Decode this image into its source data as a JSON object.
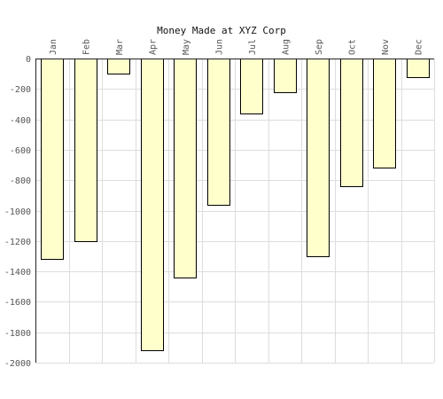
{
  "chart_data": {
    "type": "bar",
    "title": "Money Made at XYZ Corp",
    "xlabel": "",
    "ylabel": "",
    "categories": [
      "Jan",
      "Feb",
      "Mar",
      "Apr",
      "May",
      "Jun",
      "Jul",
      "Aug",
      "Sep",
      "Oct",
      "Nov",
      "Dec"
    ],
    "values": [
      -1320,
      -1200,
      -100,
      -1920,
      -1440,
      -960,
      -360,
      -220,
      -1300,
      -840,
      -720,
      -120
    ],
    "ylim": [
      -2000,
      0
    ],
    "yticks": [
      0,
      -200,
      -400,
      -600,
      -800,
      -1000,
      -1200,
      -1400,
      -1600,
      -1800,
      -2000
    ],
    "grid": true,
    "bar_color": "#ffffcc",
    "bar_edge_color": "#000000",
    "grid_color": "#dddddd"
  }
}
